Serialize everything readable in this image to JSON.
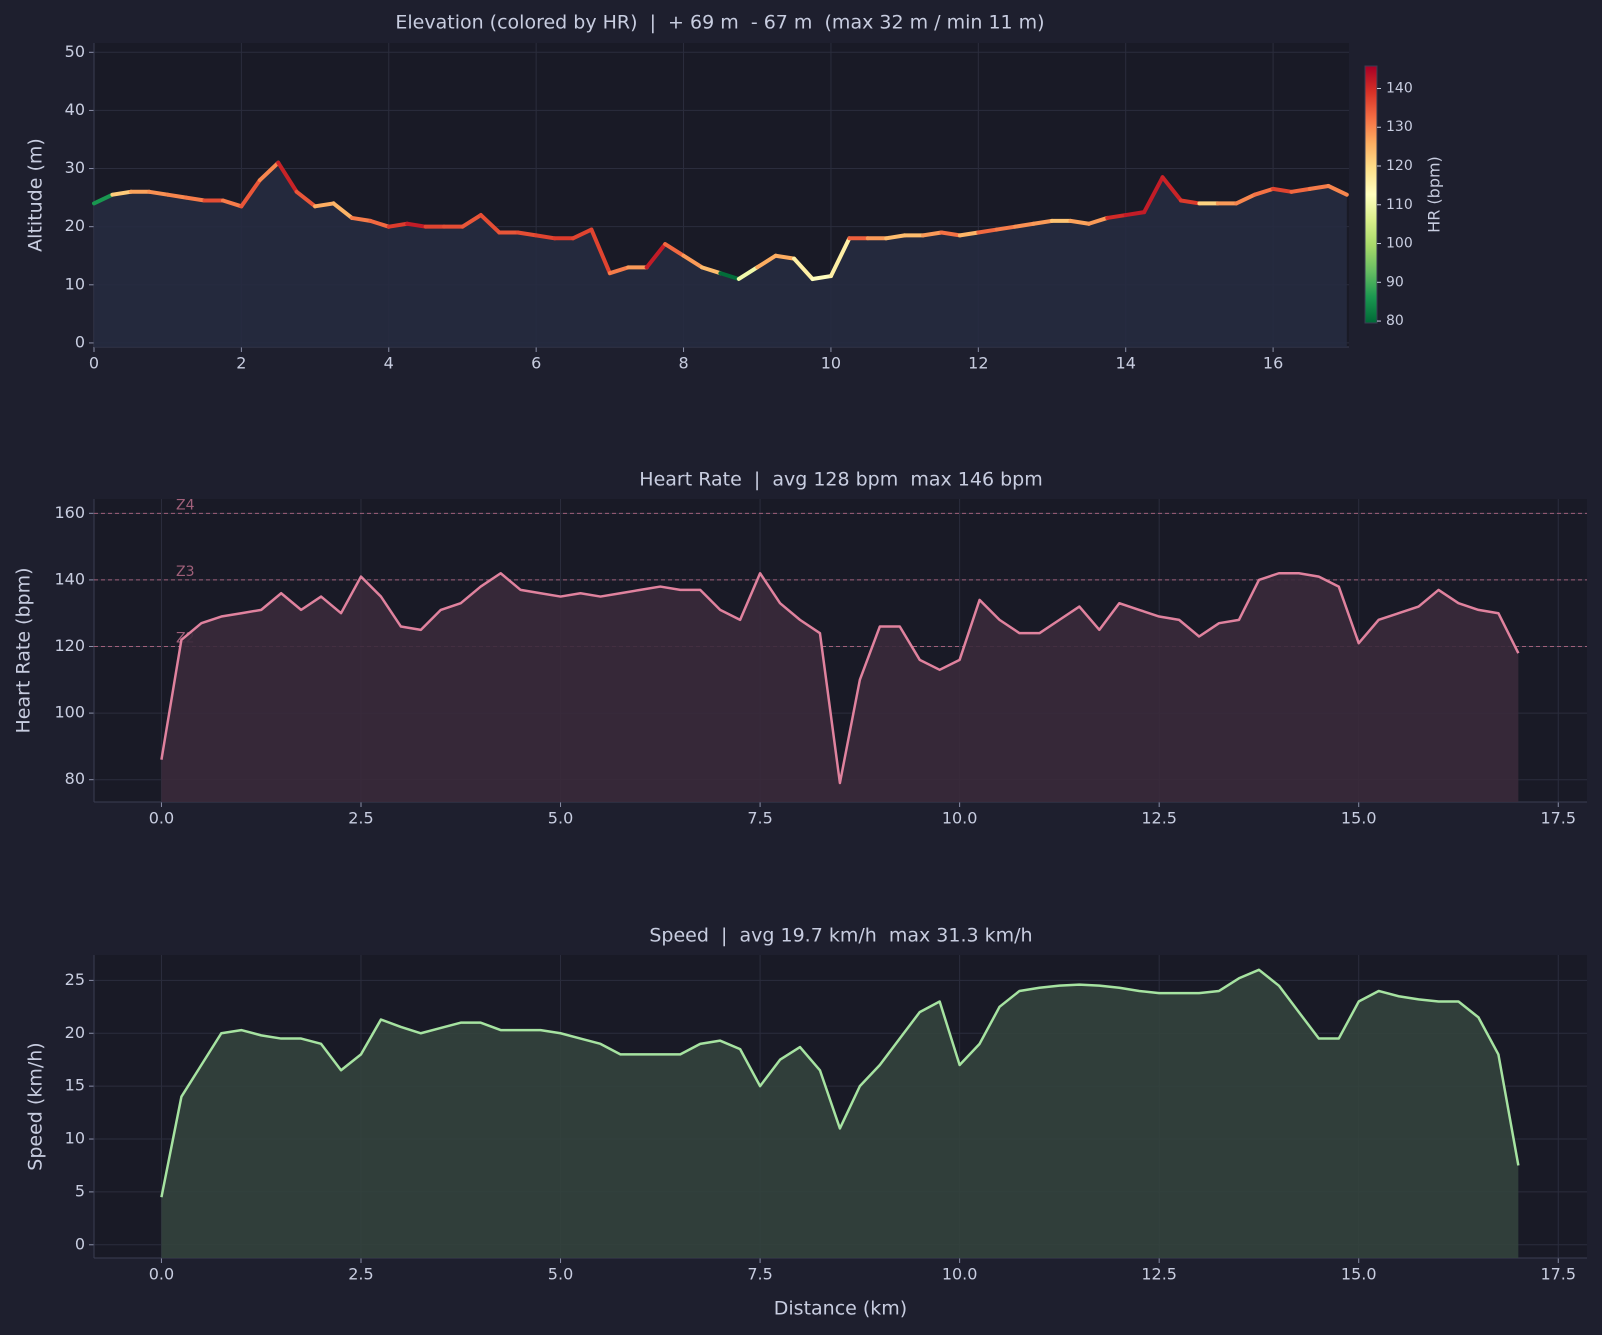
{
  "chart_data": [
    {
      "type": "line",
      "title": "Elevation (colored by HR)  |  + 69 m  - 67 m  (max 32 m / min 11 m)",
      "ylabel": "Altitude (m)",
      "x": [
        0,
        0.25,
        0.5,
        0.75,
        1,
        1.25,
        1.5,
        1.75,
        2,
        2.25,
        2.5,
        2.75,
        3,
        3.25,
        3.5,
        3.75,
        4,
        4.25,
        4.5,
        4.75,
        5,
        5.25,
        5.5,
        5.75,
        6,
        6.25,
        6.5,
        6.75,
        7,
        7.25,
        7.5,
        7.75,
        8,
        8.25,
        8.5,
        8.75,
        9,
        9.25,
        9.5,
        9.75,
        10,
        10.25,
        10.5,
        10.75,
        11,
        11.25,
        11.5,
        11.75,
        12,
        12.25,
        12.5,
        12.75,
        13,
        13.25,
        13.5,
        13.75,
        14,
        14.25,
        14.5,
        14.75,
        15,
        15.25,
        15.5,
        15.75,
        16,
        16.25,
        16.5,
        16.75,
        17
      ],
      "values": [
        24,
        25.5,
        26,
        26,
        25.5,
        25,
        24.5,
        24.5,
        23.5,
        28,
        31,
        26,
        23.5,
        24,
        21.5,
        21,
        20,
        20.5,
        20,
        20,
        20,
        22,
        19,
        19,
        18.5,
        18,
        18,
        19.5,
        12,
        13,
        13,
        17,
        15,
        13,
        12,
        11,
        13,
        15,
        14.5,
        11,
        11.5,
        18,
        18,
        18,
        18.5,
        18.5,
        19,
        18.5,
        19,
        19.5,
        20,
        20.5,
        21,
        21,
        20.5,
        21.5,
        22,
        22.5,
        28.5,
        24.5,
        24,
        24,
        24,
        25.5,
        26.5,
        26,
        26.5,
        27,
        25.5
      ],
      "color_values": [
        86,
        122,
        127,
        129,
        130,
        131,
        136,
        131,
        135,
        130,
        141,
        135,
        126,
        125,
        131,
        133,
        138,
        142,
        137,
        136,
        135,
        136,
        135,
        136,
        137,
        138,
        137,
        137,
        131,
        128,
        142,
        133,
        128,
        124,
        80,
        110,
        126,
        126,
        116,
        113,
        116,
        134,
        128,
        124,
        124,
        128,
        132,
        125,
        133,
        131,
        129,
        128,
        123,
        127,
        128,
        140,
        142,
        142,
        141,
        138,
        121,
        128,
        130,
        132,
        137,
        133,
        131,
        130,
        118
      ],
      "fill_color": "#262b40",
      "xlim": [
        0,
        17.03
      ],
      "xticks": [
        0,
        2,
        4,
        6,
        8,
        10,
        12,
        14,
        16
      ],
      "ylim": [
        -0.7,
        51.6
      ],
      "yticks": [
        0,
        10,
        20,
        30,
        40,
        50
      ],
      "grid": true,
      "colorbar": {
        "label": "HR (bpm)",
        "lim": [
          79.5,
          145.8
        ],
        "ticks": [
          80,
          90,
          100,
          110,
          120,
          130,
          140
        ],
        "colormap": [
          "#006837",
          "#1a9850",
          "#66bd63",
          "#a6d96a",
          "#d9ef8b",
          "#ffffbf",
          "#fee08b",
          "#fdae61",
          "#f46d43",
          "#d73027",
          "#a50026"
        ]
      }
    },
    {
      "type": "line",
      "title": "Heart Rate  |  avg 128 bpm  max 146 bpm",
      "ylabel": "Heart Rate (bpm)",
      "x": [
        0,
        0.25,
        0.5,
        0.75,
        1,
        1.25,
        1.5,
        1.75,
        2,
        2.25,
        2.5,
        2.75,
        3,
        3.25,
        3.5,
        3.75,
        4,
        4.25,
        4.5,
        4.75,
        5,
        5.25,
        5.5,
        5.75,
        6,
        6.25,
        6.5,
        6.75,
        7,
        7.25,
        7.5,
        7.75,
        8,
        8.25,
        8.5,
        8.75,
        9,
        9.25,
        9.5,
        9.75,
        10,
        10.25,
        10.5,
        10.75,
        11,
        11.25,
        11.5,
        11.75,
        12,
        12.25,
        12.5,
        12.75,
        13,
        13.25,
        13.5,
        13.75,
        14,
        14.25,
        14.5,
        14.75,
        15,
        15.25,
        15.5,
        15.75,
        16,
        16.25,
        16.5,
        16.75,
        17
      ],
      "values": [
        86,
        122,
        127,
        129,
        130,
        131,
        136,
        131,
        135,
        130,
        141,
        135,
        126,
        125,
        131,
        133,
        138,
        142,
        137,
        136,
        135,
        136,
        135,
        136,
        137,
        138,
        137,
        137,
        131,
        128,
        142,
        133,
        128,
        124,
        79,
        110,
        126,
        126,
        116,
        113,
        116,
        134,
        128,
        124,
        124,
        128,
        132,
        125,
        133,
        131,
        129,
        128,
        123,
        127,
        128,
        140,
        142,
        142,
        141,
        138,
        121,
        128,
        130,
        132,
        137,
        133,
        131,
        130,
        118
      ],
      "color": "#e0829e",
      "fill_color": "#3a2a3b",
      "zones": [
        {
          "value": 120,
          "label": "Z2"
        },
        {
          "value": 140,
          "label": "Z3"
        },
        {
          "value": 160,
          "label": "Z4"
        }
      ],
      "zone_color": "#a0607a",
      "xlim": [
        -0.845,
        17.86
      ],
      "xticks": [
        {
          "value": 0,
          "label": "0.0"
        },
        2.5,
        {
          "value": 5,
          "label": "5.0"
        },
        7.5,
        {
          "value": 10,
          "label": "10.0"
        },
        12.5,
        {
          "value": 15,
          "label": "15.0"
        },
        17.5
      ],
      "ylim": [
        73.3,
        164.3
      ],
      "yticks": [
        80,
        100,
        120,
        140,
        160
      ],
      "grid": true
    },
    {
      "type": "line",
      "title": "Speed  |  avg 19.7 km/h  max 31.3 km/h",
      "ylabel": "Speed (km/h)",
      "xlabel": "Distance (km)",
      "x": [
        0,
        0.25,
        0.5,
        0.75,
        1,
        1.25,
        1.5,
        1.75,
        2,
        2.25,
        2.5,
        2.75,
        3,
        3.25,
        3.5,
        3.75,
        4,
        4.25,
        4.5,
        4.75,
        5,
        5.25,
        5.5,
        5.75,
        6,
        6.25,
        6.5,
        6.75,
        7,
        7.25,
        7.5,
        7.75,
        8,
        8.25,
        8.5,
        8.75,
        9,
        9.25,
        9.5,
        9.75,
        10,
        10.25,
        10.5,
        10.75,
        11,
        11.25,
        11.5,
        11.75,
        12,
        12.25,
        12.5,
        12.75,
        13,
        13.25,
        13.5,
        13.75,
        14,
        14.25,
        14.5,
        14.75,
        15,
        15.25,
        15.5,
        15.75,
        16,
        16.25,
        16.5,
        16.75,
        17
      ],
      "values": [
        4.5,
        14,
        17,
        20,
        20.3,
        19.8,
        19.5,
        19.5,
        19,
        16.5,
        18,
        21.3,
        20.6,
        20,
        20.5,
        21,
        21,
        20.3,
        20.3,
        20.3,
        20,
        19.5,
        19,
        18,
        18,
        18,
        18,
        19,
        19.3,
        18.5,
        15,
        17.5,
        18.7,
        16.5,
        11,
        15,
        17,
        19.5,
        22,
        23,
        17,
        19,
        22.5,
        24,
        24.3,
        24.5,
        24.6,
        24.5,
        24.3,
        24,
        23.8,
        23.8,
        23.8,
        24,
        25.2,
        26,
        24.5,
        22,
        19.5,
        19.5,
        23,
        24,
        23.5,
        23.2,
        23,
        23,
        21.5,
        18,
        7.5
      ],
      "color": "#a6e3a1",
      "fill_color": "#33423d",
      "xlim": [
        -0.845,
        17.86
      ],
      "xticks": [
        {
          "value": 0,
          "label": "0.0"
        },
        2.5,
        {
          "value": 5,
          "label": "5.0"
        },
        7.5,
        {
          "value": 10,
          "label": "10.0"
        },
        12.5,
        {
          "value": 15,
          "label": "15.0"
        },
        17.5
      ],
      "ylim": [
        -1.25,
        27.4
      ],
      "yticks": [
        0,
        5,
        10,
        15,
        20,
        25
      ],
      "grid": true
    }
  ]
}
